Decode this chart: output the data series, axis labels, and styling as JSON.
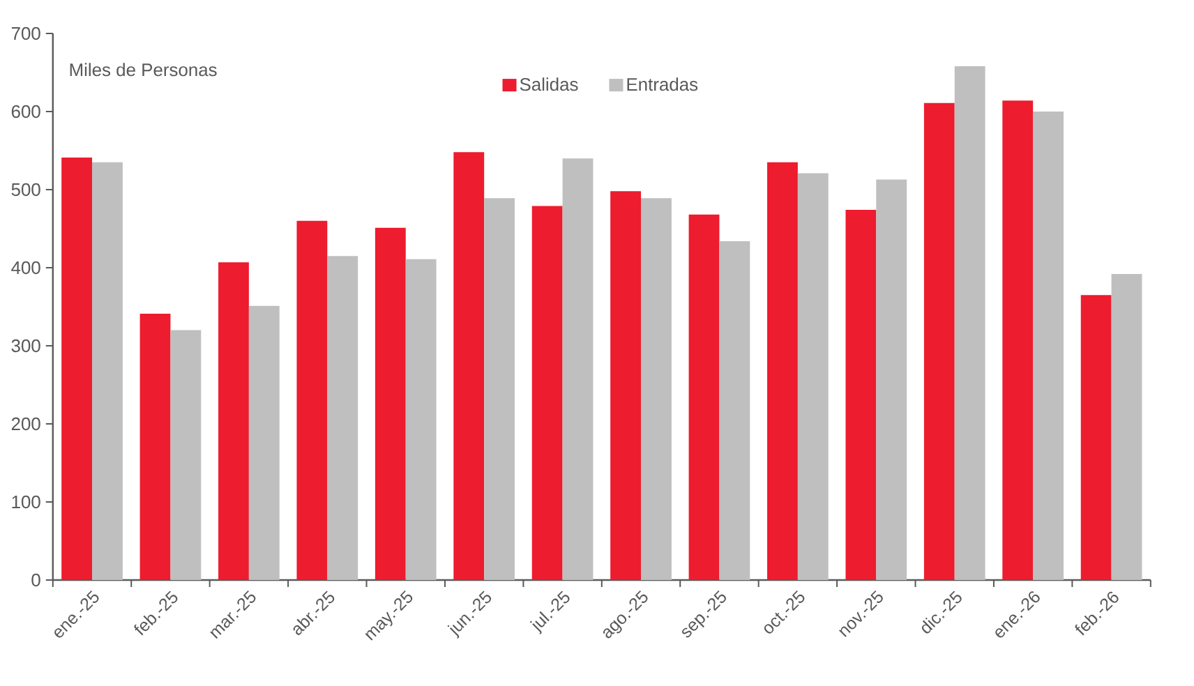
{
  "chart_data": {
    "type": "bar",
    "categories": [
      "ene.-25",
      "feb.-25",
      "mar.-25",
      "abr.-25",
      "may.-25",
      "jun.-25",
      "jul.-25",
      "ago.-25",
      "sep.-25",
      "oct.-25",
      "nov.-25",
      "dic.-25",
      "ene.-26",
      "feb.-26"
    ],
    "series": [
      {
        "name": "Salidas",
        "color": "#ed1c2e",
        "values": [
          541,
          341,
          407,
          460,
          451,
          548,
          479,
          498,
          468,
          535,
          474,
          611,
          614,
          365
        ]
      },
      {
        "name": "Entradas",
        "color": "#bfbfbf",
        "values": [
          535,
          320,
          351,
          415,
          411,
          489,
          540,
          489,
          434,
          521,
          513,
          658,
          600,
          392
        ]
      }
    ],
    "annotations": [
      "Miles de Personas"
    ],
    "ylim": [
      0,
      700
    ],
    "yticks": [
      0,
      100,
      200,
      300,
      400,
      500,
      600,
      700
    ],
    "grid": false,
    "legend": "top"
  }
}
